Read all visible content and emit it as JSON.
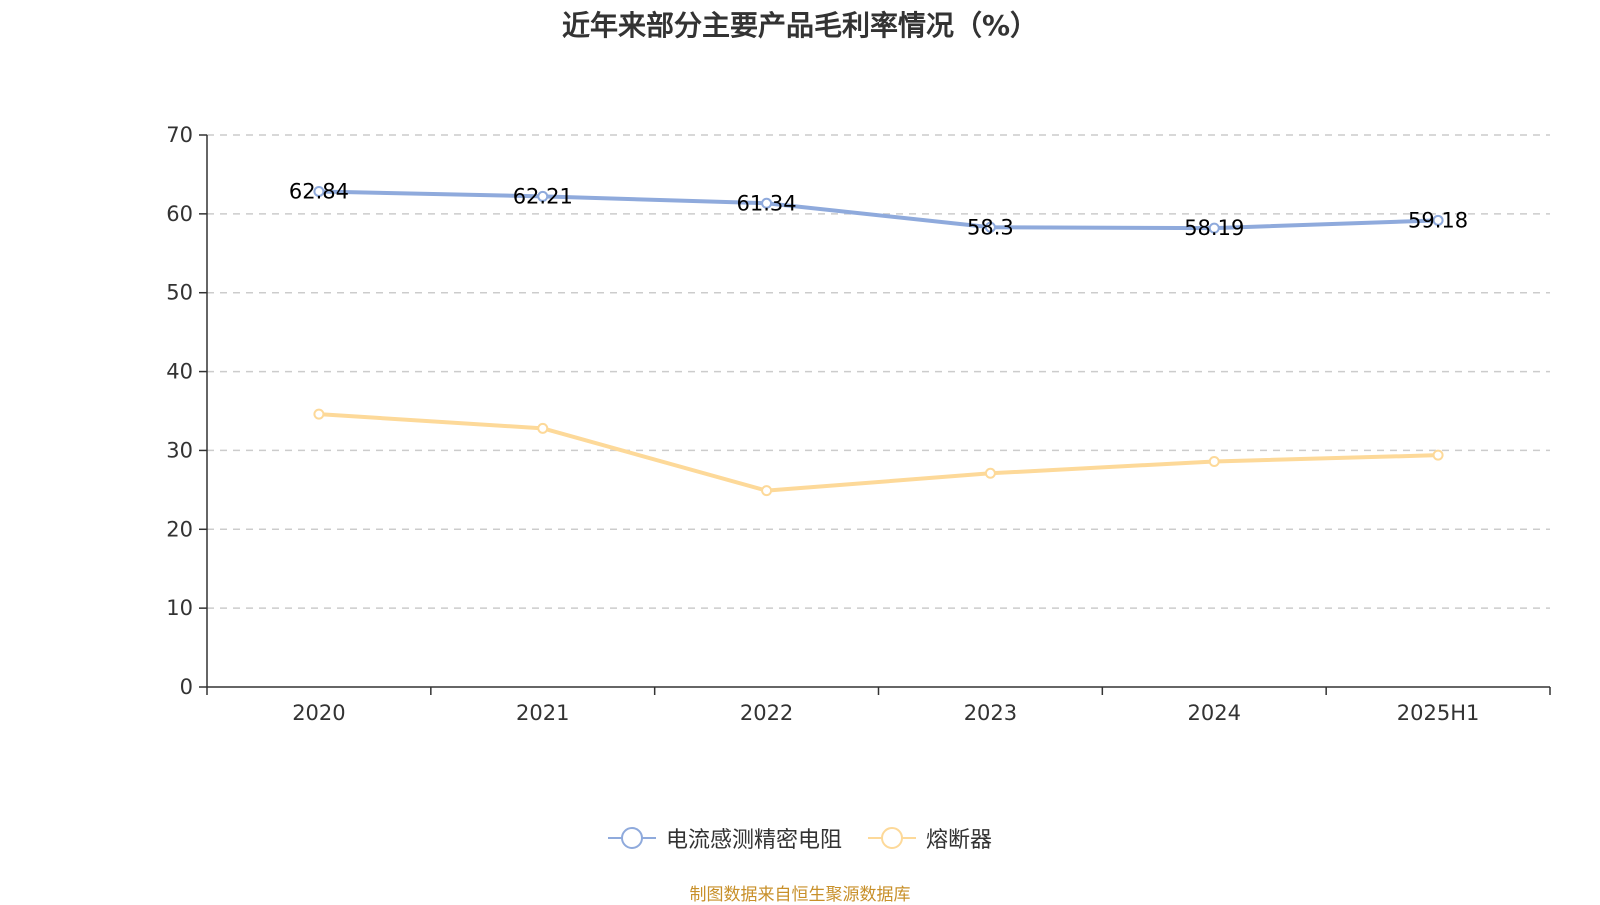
{
  "title": "近年来部分主要产品毛利率情况（%）",
  "source": "制图数据来自恒生聚源数据库",
  "colors": {
    "series1": "#8faadc",
    "series2": "#fdd999",
    "axis": "#333333",
    "grid": "#cccccc"
  },
  "chart_data": {
    "type": "line",
    "categories": [
      "2020",
      "2021",
      "2022",
      "2023",
      "2024",
      "2025H1"
    ],
    "ylim": [
      0,
      70
    ],
    "yticks": [
      0,
      10,
      20,
      30,
      40,
      50,
      60,
      70
    ],
    "grid": "horizontal dashed",
    "legend_position": "bottom-center",
    "series": [
      {
        "name": "电流感测精密电阻",
        "values": [
          62.84,
          62.21,
          61.34,
          58.3,
          58.19,
          59.18
        ],
        "labels": [
          "62.84",
          "62.21",
          "61.34",
          "58.3",
          "58.19",
          "59.18"
        ]
      },
      {
        "name": "熔断器",
        "values": [
          34.6,
          32.8,
          24.9,
          27.1,
          28.6,
          29.4
        ]
      }
    ]
  }
}
